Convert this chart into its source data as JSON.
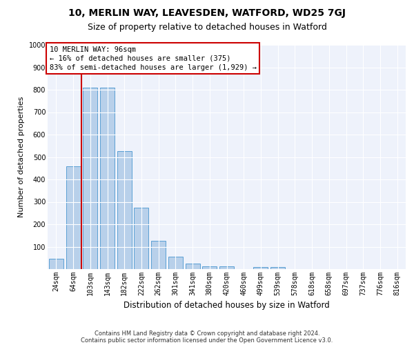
{
  "title1": "10, MERLIN WAY, LEAVESDEN, WATFORD, WD25 7GJ",
  "title2": "Size of property relative to detached houses in Watford",
  "xlabel": "Distribution of detached houses by size in Watford",
  "ylabel": "Number of detached properties",
  "categories": [
    "24sqm",
    "64sqm",
    "103sqm",
    "143sqm",
    "182sqm",
    "222sqm",
    "262sqm",
    "301sqm",
    "341sqm",
    "380sqm",
    "420sqm",
    "460sqm",
    "499sqm",
    "539sqm",
    "578sqm",
    "618sqm",
    "658sqm",
    "697sqm",
    "737sqm",
    "776sqm",
    "816sqm"
  ],
  "values": [
    45,
    460,
    810,
    810,
    525,
    275,
    125,
    55,
    25,
    12,
    12,
    0,
    10,
    10,
    0,
    0,
    0,
    0,
    0,
    0,
    0
  ],
  "bar_color": "#b8d0ea",
  "bar_edge_color": "#5a9fd4",
  "vline_color": "#cc0000",
  "annotation_text": "10 MERLIN WAY: 96sqm\n← 16% of detached houses are smaller (375)\n83% of semi-detached houses are larger (1,929) →",
  "annotation_box_facecolor": "#ffffff",
  "annotation_box_edgecolor": "#cc0000",
  "ylim": [
    0,
    1000
  ],
  "yticks": [
    0,
    100,
    200,
    300,
    400,
    500,
    600,
    700,
    800,
    900,
    1000
  ],
  "bg_color": "#eef2fb",
  "grid_color": "#ffffff",
  "footnote1": "Contains HM Land Registry data © Crown copyright and database right 2024.",
  "footnote2": "Contains public sector information licensed under the Open Government Licence v3.0.",
  "title1_fontsize": 10,
  "title2_fontsize": 9,
  "xlabel_fontsize": 8.5,
  "ylabel_fontsize": 8,
  "tick_fontsize": 7,
  "annot_fontsize": 7.5,
  "footnote_fontsize": 6
}
